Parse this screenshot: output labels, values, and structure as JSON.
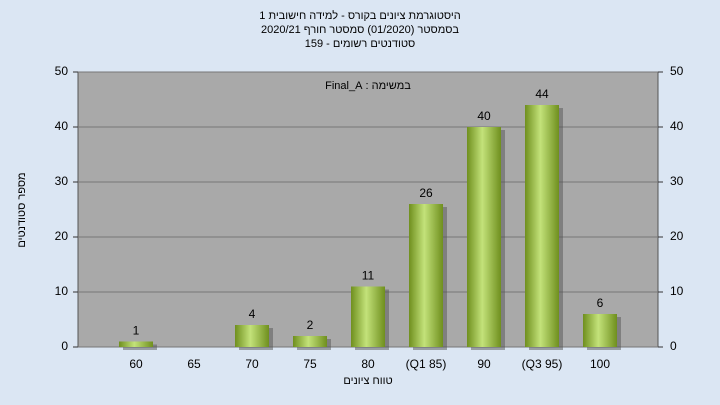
{
  "chart_data": {
    "type": "bar",
    "title": "היסטוגרמת ציונים בקורס - למידה חישובית 1",
    "subtitle": "בסמסטר  (01/2020)  סמסטר חורף 2020/21",
    "subtitle2": "סטודנטים רשומים - 159",
    "annotation": "במשימה : Final_A",
    "x_label": "טווח ציונים",
    "y_label": "מספר סטודנטים",
    "categories": [
      "60",
      "65",
      "70",
      "75",
      "80",
      "(Q1 85)",
      "90",
      "(Q3 95)",
      "100"
    ],
    "values": [
      1,
      null,
      4,
      2,
      11,
      26,
      40,
      44,
      6
    ],
    "color": "#9cc63c",
    "ylim": [
      0,
      50
    ],
    "yticks": [
      0,
      10,
      20,
      30,
      40,
      50
    ],
    "y2lim": [
      0,
      50
    ],
    "y2ticks": [
      0,
      10,
      20,
      30,
      40,
      50
    ],
    "grid": true
  }
}
